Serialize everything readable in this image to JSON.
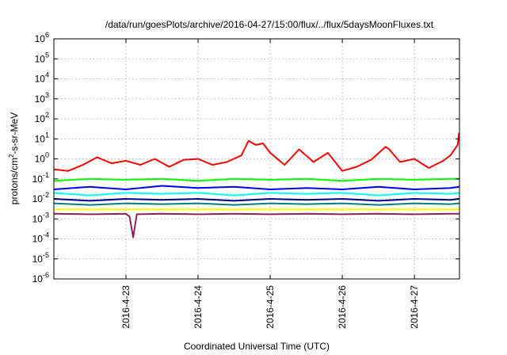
{
  "chart_data": {
    "type": "line",
    "title": "/data/run/goesPlots/archive/2016-04-27/15:00/flux/../flux/5daysMoonFluxes.txt",
    "xlabel": "Coordinated Universal Time (UTC)",
    "ylabel": "protons/cm²-s-sr-MeV",
    "ylabel_parts": {
      "pre": "protons/cm",
      "sup": "2",
      "post": "-s-sr-MeV"
    },
    "yscale": "log",
    "ylim": [
      1e-06,
      1000000.0
    ],
    "y_ticks": [
      {
        "base": "10",
        "exp": "-6",
        "value": 1e-06
      },
      {
        "base": "10",
        "exp": "-5",
        "value": 1e-05
      },
      {
        "base": "10",
        "exp": "-4",
        "value": 0.0001
      },
      {
        "base": "10",
        "exp": "-3",
        "value": 0.001
      },
      {
        "base": "10",
        "exp": "-2",
        "value": 0.01
      },
      {
        "base": "10",
        "exp": "-1",
        "value": 0.1
      },
      {
        "base": "10",
        "exp": "0",
        "value": 1
      },
      {
        "base": "10",
        "exp": "1",
        "value": 10
      },
      {
        "base": "10",
        "exp": "2",
        "value": 100
      },
      {
        "base": "10",
        "exp": "3",
        "value": 1000
      },
      {
        "base": "10",
        "exp": "4",
        "value": 10000
      },
      {
        "base": "10",
        "exp": "5",
        "value": 100000
      },
      {
        "base": "10",
        "exp": "6",
        "value": 1000000
      }
    ],
    "xlim": [
      "2016-04-22 00:00",
      "2016-04-27 15:00"
    ],
    "x_ticks": [
      {
        "label": "2016-4-23",
        "day": 1
      },
      {
        "label": "2016-4-24",
        "day": 2
      },
      {
        "label": "2016-4-25",
        "day": 3
      },
      {
        "label": "2016-4-26",
        "day": 4
      },
      {
        "label": "2016-4-27",
        "day": 5
      }
    ],
    "grid": true,
    "series": [
      {
        "color": "#ff0000",
        "x_days": [
          0,
          0.2,
          0.4,
          0.6,
          0.8,
          1.0,
          1.2,
          1.4,
          1.6,
          1.8,
          2.0,
          2.2,
          2.4,
          2.6,
          2.7,
          2.8,
          2.9,
          3.0,
          3.2,
          3.4,
          3.6,
          3.8,
          4.0,
          4.2,
          4.4,
          4.6,
          4.65,
          4.8,
          5.0,
          5.2,
          5.4,
          5.5,
          5.6,
          5.62
        ],
        "values": [
          0.3,
          0.25,
          0.5,
          1.2,
          0.6,
          0.8,
          0.5,
          1.0,
          0.4,
          0.9,
          1.0,
          0.5,
          0.7,
          1.5,
          8,
          5,
          6,
          2,
          0.5,
          3,
          0.7,
          2,
          0.25,
          0.4,
          0.9,
          4,
          3,
          0.7,
          1,
          0.35,
          0.8,
          1.5,
          5,
          20
        ]
      },
      {
        "color": "#00ff00",
        "x_days": [
          0,
          0.5,
          1.0,
          1.5,
          2.0,
          2.5,
          3.0,
          3.5,
          4.0,
          4.5,
          5.0,
          5.5,
          5.62
        ],
        "values": [
          0.08,
          0.1,
          0.09,
          0.1,
          0.08,
          0.1,
          0.09,
          0.1,
          0.08,
          0.1,
          0.09,
          0.1,
          0.1
        ]
      },
      {
        "color": "#0000ff",
        "x_days": [
          0,
          0.5,
          1.0,
          1.5,
          2.0,
          2.5,
          3.0,
          3.5,
          4.0,
          4.5,
          5.0,
          5.5,
          5.62
        ],
        "values": [
          0.03,
          0.04,
          0.03,
          0.045,
          0.035,
          0.04,
          0.03,
          0.035,
          0.03,
          0.04,
          0.03,
          0.035,
          0.04
        ]
      },
      {
        "color": "#00ffff",
        "x_days": [
          0,
          0.5,
          1.0,
          1.5,
          2.0,
          2.5,
          3.0,
          3.5,
          4.0,
          4.5,
          5.0,
          5.5,
          5.62
        ],
        "values": [
          0.02,
          0.015,
          0.02,
          0.018,
          0.02,
          0.015,
          0.02,
          0.018,
          0.02,
          0.015,
          0.02,
          0.018,
          0.02
        ]
      },
      {
        "color": "#000080",
        "x_days": [
          0,
          0.5,
          1.0,
          1.5,
          2.0,
          2.5,
          3.0,
          3.5,
          4.0,
          4.5,
          5.0,
          5.5,
          5.62
        ],
        "values": [
          0.01,
          0.008,
          0.01,
          0.009,
          0.01,
          0.008,
          0.01,
          0.009,
          0.01,
          0.008,
          0.01,
          0.009,
          0.01
        ]
      },
      {
        "color": "#008080",
        "x_days": [
          0,
          0.5,
          1.0,
          1.5,
          2.0,
          2.5,
          3.0,
          3.5,
          4.0,
          4.5,
          5.0,
          5.5,
          5.62
        ],
        "values": [
          0.006,
          0.005,
          0.006,
          0.0055,
          0.006,
          0.005,
          0.006,
          0.0055,
          0.006,
          0.005,
          0.006,
          0.0055,
          0.006
        ]
      },
      {
        "color": "#ffff00",
        "x_days": [
          0,
          1.0,
          2.0,
          3.0,
          4.0,
          5.0,
          5.62
        ],
        "values": [
          0.003,
          0.003,
          0.003,
          0.003,
          0.003,
          0.003,
          0.003
        ]
      },
      {
        "color": "#8b2252",
        "x_days": [
          0,
          0.5,
          1.0,
          1.05,
          1.1,
          1.15,
          1.5,
          2.0,
          2.5,
          3.0,
          3.5,
          4.0,
          4.5,
          5.0,
          5.5,
          5.62
        ],
        "values": [
          0.0018,
          0.0017,
          0.0018,
          0.0013,
          0.00012,
          0.0017,
          0.0018,
          0.0017,
          0.0018,
          0.0017,
          0.0018,
          0.0017,
          0.0018,
          0.0017,
          0.0018,
          0.0018
        ]
      }
    ]
  }
}
